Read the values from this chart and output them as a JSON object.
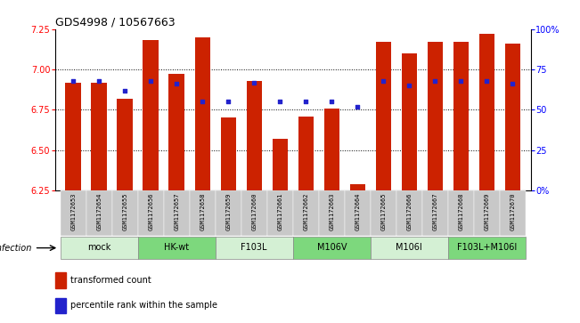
{
  "title": "GDS4998 / 10567663",
  "samples": [
    "GSM1172653",
    "GSM1172654",
    "GSM1172655",
    "GSM1172656",
    "GSM1172657",
    "GSM1172658",
    "GSM1172659",
    "GSM1172660",
    "GSM1172661",
    "GSM1172662",
    "GSM1172663",
    "GSM1172664",
    "GSM1172665",
    "GSM1172666",
    "GSM1172667",
    "GSM1172668",
    "GSM1172669",
    "GSM1172670"
  ],
  "bar_values": [
    6.92,
    6.92,
    6.82,
    7.18,
    6.97,
    7.2,
    6.7,
    6.93,
    6.57,
    6.71,
    6.76,
    6.29,
    7.17,
    7.1,
    7.17,
    7.17,
    7.22,
    7.16
  ],
  "blue_dot_values": [
    68,
    68,
    62,
    68,
    66,
    55,
    55,
    67,
    55,
    55,
    55,
    52,
    68,
    65,
    68,
    68,
    68,
    66
  ],
  "ylim_left": [
    6.25,
    7.25
  ],
  "ylim_right": [
    0,
    100
  ],
  "yticks_left": [
    6.25,
    6.5,
    6.75,
    7.0,
    7.25
  ],
  "yticks_right": [
    0,
    25,
    50,
    75,
    100
  ],
  "groups": [
    {
      "label": "mock",
      "start": 0,
      "end": 2,
      "color": "#d4f0d4"
    },
    {
      "label": "HK-wt",
      "start": 3,
      "end": 5,
      "color": "#7dd87d"
    },
    {
      "label": "F103L",
      "start": 6,
      "end": 8,
      "color": "#d4f0d4"
    },
    {
      "label": "M106V",
      "start": 9,
      "end": 11,
      "color": "#7dd87d"
    },
    {
      "label": "M106I",
      "start": 12,
      "end": 14,
      "color": "#d4f0d4"
    },
    {
      "label": "F103L+M106I",
      "start": 15,
      "end": 17,
      "color": "#7dd87d"
    }
  ],
  "bar_color": "#cc2200",
  "dot_color": "#2222cc",
  "bar_bottom": 6.25,
  "infection_label": "infection",
  "legend_bar_label": "transformed count",
  "legend_dot_label": "percentile rank within the sample",
  "sample_bg_color": "#c8c8c8",
  "title_fontsize": 9,
  "bar_width": 0.6
}
